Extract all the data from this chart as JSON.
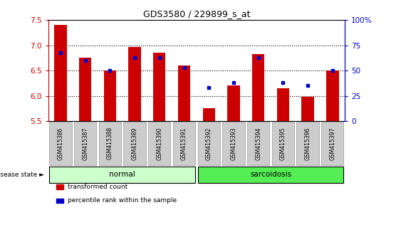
{
  "title": "GDS3580 / 229899_s_at",
  "samples": [
    "GSM415386",
    "GSM415387",
    "GSM415388",
    "GSM415389",
    "GSM415390",
    "GSM415391",
    "GSM415392",
    "GSM415393",
    "GSM415394",
    "GSM415395",
    "GSM415396",
    "GSM415397"
  ],
  "transformed_count": [
    7.4,
    6.75,
    6.5,
    6.97,
    6.85,
    6.6,
    5.76,
    6.2,
    6.83,
    6.15,
    5.98,
    6.5
  ],
  "percentile_rank": [
    68,
    60,
    50,
    63,
    63,
    53,
    33,
    38,
    63,
    38,
    35,
    50
  ],
  "disease_state": [
    "normal",
    "normal",
    "normal",
    "normal",
    "normal",
    "normal",
    "sarcoidosis",
    "sarcoidosis",
    "sarcoidosis",
    "sarcoidosis",
    "sarcoidosis",
    "sarcoidosis"
  ],
  "bar_color": "#cc0000",
  "dot_color": "#0000cc",
  "ylim_left": [
    5.5,
    7.5
  ],
  "ylim_right": [
    0,
    100
  ],
  "yticks_left": [
    5.5,
    6.0,
    6.5,
    7.0,
    7.5
  ],
  "yticks_right": [
    0,
    25,
    50,
    75,
    100
  ],
  "ytick_labels_right": [
    "0",
    "25",
    "50",
    "75",
    "100%"
  ],
  "normal_color": "#ccffcc",
  "sarcoidosis_color": "#55ee55",
  "tick_box_color": "#cccccc",
  "background_color": "#ffffff",
  "legend_labels": [
    "transformed count",
    "percentile rank within the sample"
  ],
  "legend_colors": [
    "#cc0000",
    "#0000cc"
  ],
  "grid_ticks": [
    6.0,
    6.5,
    7.0
  ]
}
